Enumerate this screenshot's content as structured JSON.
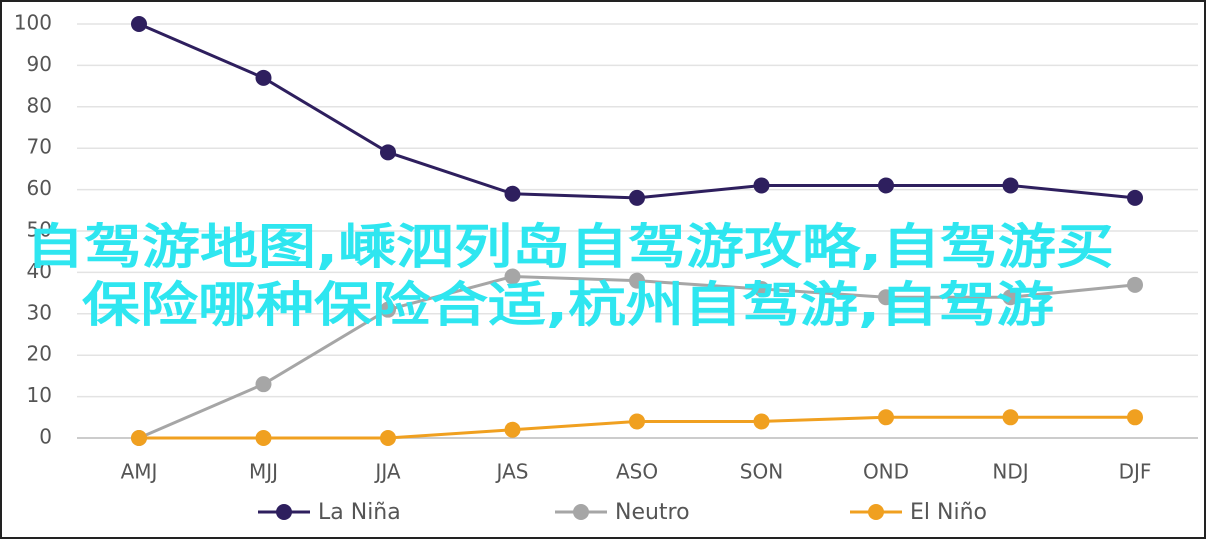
{
  "chart_data": {
    "type": "line",
    "categories": [
      "AMJ",
      "MJJ",
      "JJA",
      "JAS",
      "ASO",
      "SON",
      "OND",
      "NDJ",
      "DJF"
    ],
    "series": [
      {
        "name": "La Niña",
        "color": "#2e1f5e",
        "values": [
          100,
          87,
          69,
          59,
          58,
          61,
          61,
          61,
          58
        ]
      },
      {
        "name": "Neutro",
        "color": "#a6a6a6",
        "values": [
          0,
          13,
          31,
          39,
          38,
          36,
          34,
          34,
          37
        ]
      },
      {
        "name": "El Niño",
        "color": "#f0a020",
        "values": [
          0,
          0,
          0,
          2,
          4,
          4,
          5,
          5,
          5
        ]
      }
    ],
    "ylim": [
      0,
      100
    ],
    "yticks": [
      0,
      10,
      20,
      30,
      40,
      50,
      60,
      70,
      80,
      90,
      100
    ],
    "grid": true,
    "legend": "bottom",
    "annotations": [
      "自驾游地图,嵊泗列岛自驾游攻略,自驾游买",
      "保险哪种保险合适,杭州自驾游,自驾游"
    ]
  }
}
